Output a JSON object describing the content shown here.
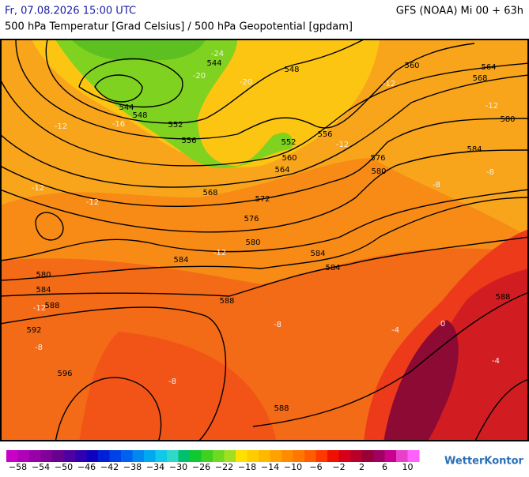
{
  "header": {
    "left": "Fr, 07.08.2026 15:00 UTC",
    "right": "GFS (NOAA) Mi 00 + 63h",
    "subtitle": "500 hPa Temperatur [Grad Celsius] / 500 hPa Geopotential [gpdam]"
  },
  "contour_labels": [
    "544",
    "548",
    "560",
    "564",
    "568",
    "544",
    "548",
    "552",
    "556",
    "556",
    "552",
    "560",
    "564",
    "576",
    "580",
    "580",
    "584",
    "568",
    "572",
    "576",
    "580",
    "584",
    "584",
    "584",
    "580",
    "584",
    "588",
    "588",
    "588",
    "592",
    "596",
    "588"
  ],
  "isotherm_labels": [
    "-24",
    "-20",
    "-20",
    "-16",
    "-12",
    "-12",
    "-12",
    "-12",
    "-12",
    "-12",
    "-8",
    "-8",
    "-12",
    "-12",
    "-8",
    "-8",
    "-4",
    "0",
    "-4",
    "-8"
  ],
  "legend": {
    "labels": [
      "−58",
      "−54",
      "−50",
      "−46",
      "−42",
      "−38",
      "−34",
      "−30",
      "−26",
      "−22",
      "−18",
      "−14",
      "−10",
      "−6",
      "−2",
      "2",
      "6",
      "10"
    ]
  },
  "logo": "WetterKontor"
}
